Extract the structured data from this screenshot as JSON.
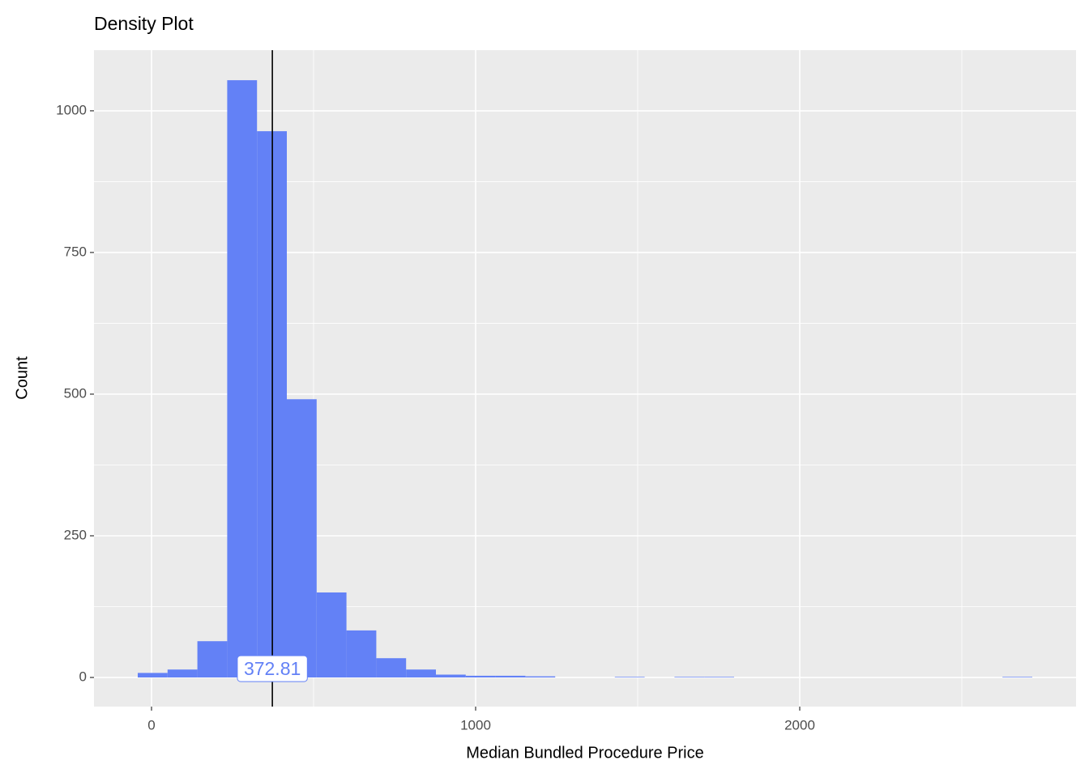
{
  "chart_data": {
    "type": "histogram",
    "title": "Density Plot",
    "x_label": "Median Bundled Procedure Price",
    "y_label": "Count",
    "bins": [
      -42.5,
      49.5,
      141.5,
      233.5,
      325.5,
      417.5,
      509.5,
      601.5,
      693.5,
      785.5,
      877.5,
      969.5,
      1061.5,
      1153.5,
      1245.5,
      1337.5,
      1429.5,
      1521.5,
      1613.5,
      1705.5,
      1797.5,
      1889.5,
      1981.5,
      2073.5,
      2165.5,
      2257.5,
      2349.5,
      2441.5,
      2533.5,
      2625.5,
      2717.5
    ],
    "counts": [
      8,
      14,
      64,
      1054,
      964,
      491,
      150,
      83,
      34,
      14,
      5,
      3,
      3,
      2,
      0,
      0,
      1,
      0,
      1,
      1,
      0,
      0,
      0,
      0,
      0,
      0,
      0,
      0,
      0,
      1
    ],
    "color": "#6381f6",
    "vline": 372.81,
    "xlim": [
      -177.5,
      2852.5
    ],
    "ylim": [
      -51.4,
      1107
    ],
    "xticks": [
      0,
      1000,
      2000
    ],
    "yticks": [
      0,
      250,
      500,
      750,
      1000
    ],
    "x_minor_grid": [
      500,
      1500,
      2500
    ],
    "y_minor_grid": [
      125,
      375,
      625,
      875
    ],
    "grid": true
  }
}
